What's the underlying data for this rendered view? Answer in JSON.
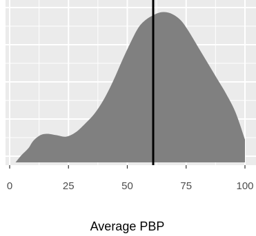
{
  "chart_data": {
    "type": "area",
    "title": "",
    "xlabel": "Average PBP",
    "ylabel": "",
    "xlim": [
      0,
      100
    ],
    "x_ticks": [
      0,
      25,
      50,
      75,
      100
    ],
    "x_tick_labels": [
      "0",
      "25",
      "50",
      "75",
      "100"
    ],
    "grid": true,
    "legend": "none",
    "x": [
      2.5,
      5,
      8,
      10,
      13,
      16,
      20,
      24,
      28,
      32,
      36,
      40,
      44,
      48,
      52,
      55,
      58,
      61,
      64,
      67,
      70,
      73,
      76,
      80,
      84,
      88,
      92,
      96,
      100
    ],
    "density": [
      0.0,
      0.05,
      0.1,
      0.15,
      0.19,
      0.2,
      0.19,
      0.18,
      0.21,
      0.27,
      0.34,
      0.44,
      0.57,
      0.72,
      0.86,
      0.95,
      1.0,
      1.03,
      1.05,
      1.05,
      1.03,
      0.99,
      0.92,
      0.81,
      0.7,
      0.59,
      0.48,
      0.35,
      0.16
    ],
    "vline_x": 61,
    "colors": {
      "panel_bg": "#ebebeb",
      "grid": "#ffffff",
      "area_fill": "#808080",
      "vline": "#000000"
    }
  }
}
